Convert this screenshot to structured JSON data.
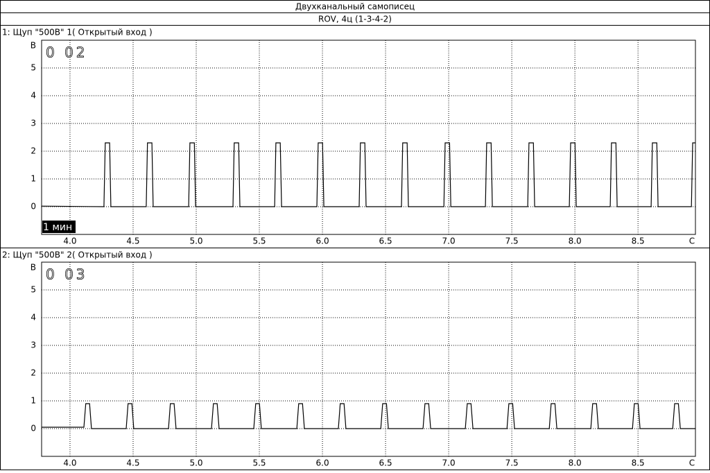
{
  "header": {
    "title": "Двухканальный самописец",
    "subtitle": "ROV, 4ц (1-3-4-2)"
  },
  "chart_data": [
    {
      "type": "line",
      "title": "1: Щуп \"500В\" 1( Открытый вход )",
      "y_label": "В",
      "x_label": "С",
      "counter": "0 02",
      "time_label": "1 мин",
      "xlim": [
        3.775,
        8.955
      ],
      "ylim": [
        -1,
        6
      ],
      "xticks": [
        {
          "value": 4,
          "label": "4.0"
        },
        4.5,
        {
          "value": 5,
          "label": "5.0"
        },
        5.5,
        {
          "value": 6,
          "label": "6.0"
        },
        6.5,
        {
          "value": 7,
          "label": "7.0"
        },
        7.5,
        {
          "value": 8,
          "label": "8.0"
        },
        8.5
      ],
      "yticks": [
        0,
        1,
        2,
        3,
        4,
        5
      ],
      "grid": true,
      "color": "#000000",
      "x": [
        3.775,
        4.269,
        4.279,
        4.314,
        4.324,
        4.604,
        4.614,
        4.649,
        4.659,
        4.94,
        4.95,
        4.985,
        4.995,
        5.291,
        5.301,
        5.336,
        5.346,
        5.621,
        5.631,
        5.666,
        5.676,
        5.956,
        5.966,
        6.001,
        6.011,
        6.291,
        6.301,
        6.336,
        6.346,
        6.626,
        6.636,
        6.671,
        6.681,
        6.962,
        6.972,
        7.007,
        7.017,
        7.291,
        7.301,
        7.336,
        7.346,
        7.626,
        7.636,
        7.671,
        7.681,
        7.956,
        7.966,
        8.001,
        8.011,
        8.28,
        8.29,
        8.325,
        8.335,
        8.604,
        8.614,
        8.649,
        8.659,
        8.923,
        8.933,
        8.955
      ],
      "values": [
        0.02,
        0,
        2.3,
        2.3,
        0,
        0,
        2.3,
        2.3,
        0,
        0,
        2.3,
        2.3,
        0,
        0,
        2.3,
        2.3,
        0,
        0,
        2.3,
        2.3,
        0,
        0,
        2.3,
        2.3,
        0,
        0,
        2.3,
        2.3,
        0,
        0,
        2.3,
        2.3,
        0,
        0,
        2.3,
        2.3,
        0,
        0,
        2.3,
        2.3,
        0,
        0,
        2.3,
        2.3,
        0,
        0,
        2.3,
        2.3,
        0,
        0,
        2.3,
        2.3,
        0,
        0,
        2.3,
        2.3,
        0,
        0,
        2.3,
        2.3
      ]
    },
    {
      "type": "line",
      "title": "2: Щуп \"500В\" 2( Открытый вход )",
      "y_label": "В",
      "x_label": "С",
      "counter": "0 03",
      "xlim": [
        3.775,
        8.955
      ],
      "ylim": [
        -1,
        6
      ],
      "xticks": [
        {
          "value": 4,
          "label": "4.0"
        },
        4.5,
        {
          "value": 5,
          "label": "5.0"
        },
        5.5,
        {
          "value": 6,
          "label": "6.0"
        },
        6.5,
        {
          "value": 7,
          "label": "7.0"
        },
        7.5,
        {
          "value": 8,
          "label": "8.0"
        },
        8.5
      ],
      "yticks": [
        0,
        1,
        2,
        3,
        4,
        5
      ],
      "grid": true,
      "color": "#000000",
      "x": [
        3.775,
        4.11,
        4.125,
        4.155,
        4.17,
        4.445,
        4.46,
        4.49,
        4.505,
        4.78,
        4.795,
        4.825,
        4.84,
        5.121,
        5.136,
        5.166,
        5.181,
        5.456,
        5.471,
        5.501,
        5.516,
        5.797,
        5.812,
        5.842,
        5.857,
        6.126,
        6.141,
        6.171,
        6.186,
        6.462,
        6.477,
        6.507,
        6.522,
        6.797,
        6.812,
        6.842,
        6.857,
        7.132,
        7.147,
        7.177,
        7.192,
        7.462,
        7.477,
        7.507,
        7.522,
        7.797,
        7.812,
        7.842,
        7.857,
        8.126,
        8.141,
        8.171,
        8.186,
        8.456,
        8.471,
        8.501,
        8.516,
        8.775,
        8.79,
        8.82,
        8.835,
        8.955
      ],
      "values": [
        0.05,
        0.05,
        0.9,
        0.9,
        0,
        0,
        0.9,
        0.9,
        0,
        0,
        0.9,
        0.9,
        0,
        0,
        0.9,
        0.9,
        0,
        0,
        0.9,
        0.9,
        0,
        0,
        0.9,
        0.9,
        0,
        0,
        0.9,
        0.9,
        0,
        0,
        0.9,
        0.9,
        0,
        0,
        0.9,
        0.9,
        0,
        0,
        0.9,
        0.9,
        0,
        0,
        0.9,
        0.9,
        0,
        0,
        0.9,
        0.9,
        0,
        0,
        0.9,
        0.9,
        0,
        0,
        0.9,
        0.9,
        0,
        0,
        0.9,
        0.9,
        0,
        0
      ]
    }
  ]
}
